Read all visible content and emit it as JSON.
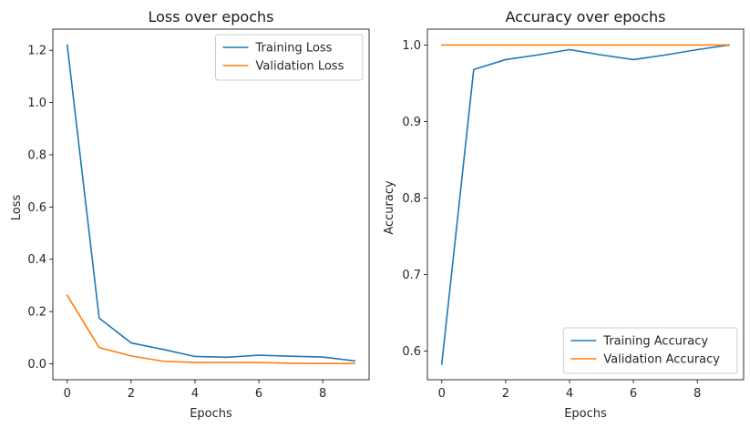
{
  "chart_data": [
    {
      "type": "line",
      "title": "Loss over epochs",
      "xlabel": "Epochs",
      "ylabel": "Loss",
      "xlim": [
        -0.45,
        9.45
      ],
      "ylim": [
        -0.061,
        1.281
      ],
      "xticks": [
        0,
        2,
        4,
        6,
        8
      ],
      "yticks": [
        0.0,
        0.2,
        0.4,
        0.6,
        0.8,
        1.0,
        1.2
      ],
      "xtick_labels": [
        "0",
        "2",
        "4",
        "6",
        "8"
      ],
      "ytick_labels": [
        "0.0",
        "0.2",
        "0.4",
        "0.6",
        "0.8",
        "1.0",
        "1.2"
      ],
      "grid": false,
      "legend_position": "top-right",
      "x": [
        0,
        1,
        2,
        3,
        4,
        5,
        6,
        7,
        8,
        9
      ],
      "series": [
        {
          "name": "Training Loss",
          "color": "#1f77b4",
          "values": [
            1.22,
            0.175,
            0.08,
            0.055,
            0.028,
            0.025,
            0.033,
            0.029,
            0.026,
            0.011
          ]
        },
        {
          "name": "Validation Loss",
          "color": "#ff7f0e",
          "values": [
            0.262,
            0.062,
            0.03,
            0.01,
            0.005,
            0.005,
            0.005,
            0.002,
            0.001,
            0.001
          ]
        }
      ]
    },
    {
      "type": "line",
      "title": "Accuracy over epochs",
      "xlabel": "Epochs",
      "ylabel": "Accuracy",
      "xlim": [
        -0.45,
        9.45
      ],
      "ylim": [
        0.5625,
        1.0208
      ],
      "xticks": [
        0,
        2,
        4,
        6,
        8
      ],
      "yticks": [
        0.6,
        0.7,
        0.8,
        0.9,
        1.0
      ],
      "xtick_labels": [
        "0",
        "2",
        "4",
        "6",
        "8"
      ],
      "ytick_labels": [
        "0.6",
        "0.7",
        "0.8",
        "0.9",
        "1.0"
      ],
      "grid": false,
      "legend_position": "bottom-right",
      "x": [
        0,
        1,
        2,
        3,
        4,
        5,
        6,
        7,
        8,
        9
      ],
      "series": [
        {
          "name": "Training Accuracy",
          "color": "#1f77b4",
          "values": [
            0.583,
            0.968,
            0.981,
            0.987,
            0.994,
            0.987,
            0.981,
            0.987,
            0.994,
            1.0
          ]
        },
        {
          "name": "Validation Accuracy",
          "color": "#ff7f0e",
          "values": [
            1.0,
            1.0,
            1.0,
            1.0,
            1.0,
            1.0,
            1.0,
            1.0,
            1.0,
            1.0
          ]
        }
      ]
    }
  ]
}
